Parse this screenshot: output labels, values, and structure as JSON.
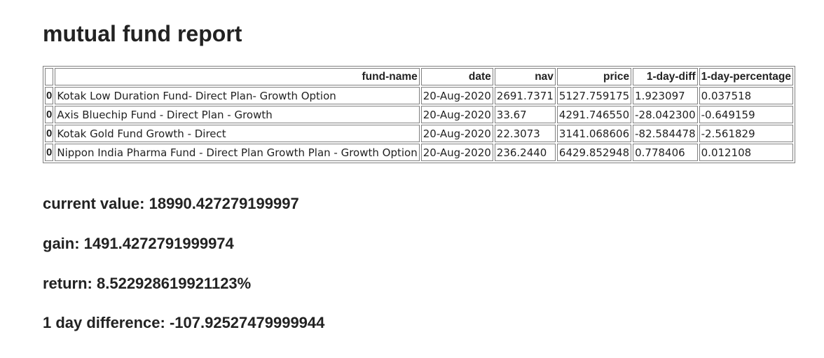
{
  "page": {
    "title": "mutual fund report"
  },
  "table": {
    "columns": [
      "",
      "fund-name",
      "date",
      "nav",
      "price",
      "1-day-diff",
      "1-day-percentage"
    ],
    "rows": [
      {
        "index": "0",
        "fund_name": "Kotak Low Duration Fund- Direct Plan- Growth Option",
        "date": "20-Aug-2020",
        "nav": "2691.7371",
        "price": "5127.759175",
        "one_day_diff": "1.923097",
        "one_day_percentage": "0.037518"
      },
      {
        "index": "0",
        "fund_name": "Axis Bluechip Fund - Direct Plan - Growth",
        "date": "20-Aug-2020",
        "nav": "33.67",
        "price": "4291.746550",
        "one_day_diff": "-28.042300",
        "one_day_percentage": "-0.649159"
      },
      {
        "index": "0",
        "fund_name": "Kotak Gold Fund Growth - Direct",
        "date": "20-Aug-2020",
        "nav": "22.3073",
        "price": "3141.068606",
        "one_day_diff": "-82.584478",
        "one_day_percentage": "-2.561829"
      },
      {
        "index": "0",
        "fund_name": "Nippon India Pharma Fund - Direct Plan Growth Plan - Growth Option",
        "date": "20-Aug-2020",
        "nav": "236.2440",
        "price": "6429.852948",
        "one_day_diff": "0.778406",
        "one_day_percentage": "0.012108"
      }
    ]
  },
  "summary": {
    "current_value": "current value: 18990.427279199997",
    "gain": "gain: 1491.4272791999974",
    "return": "return: 8.522928619921123%",
    "one_day_difference": "1 day difference: -107.92527479999944"
  }
}
